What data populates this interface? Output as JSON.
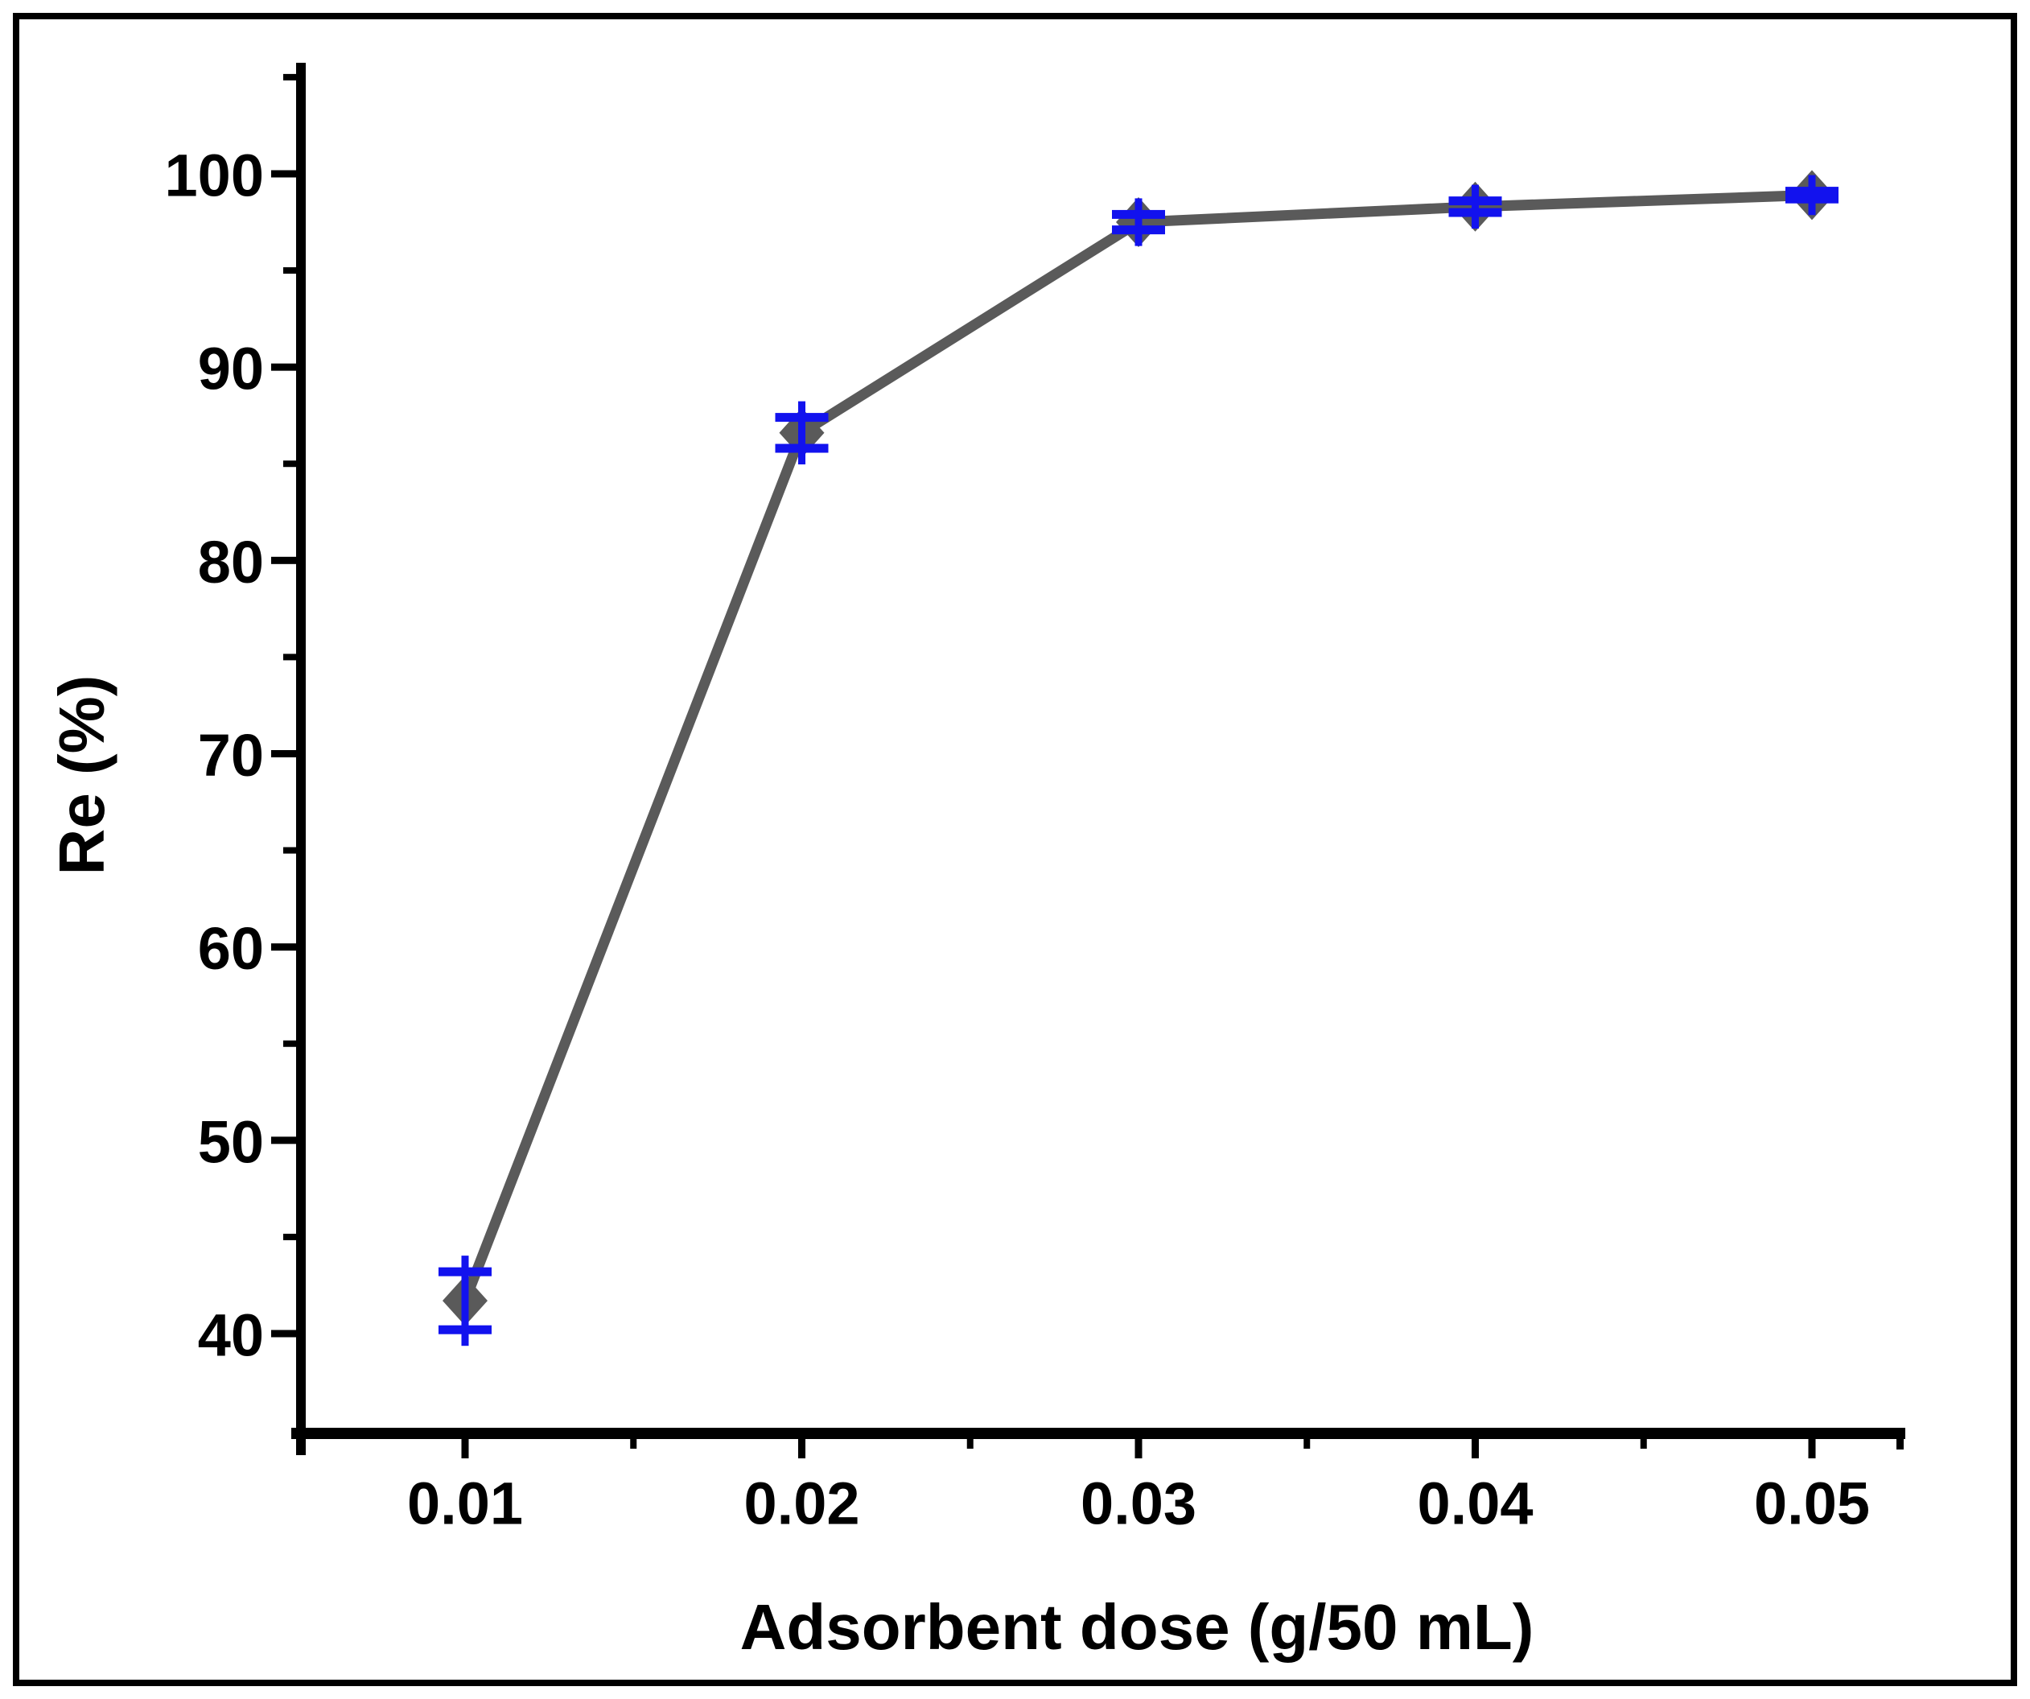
{
  "figure": {
    "background": "#ffffff",
    "border_color": "#000000"
  },
  "chart_data": {
    "type": "line",
    "title": "",
    "xlabel": "Adsorbent dose (g/50 mL)",
    "ylabel": "Re (%)",
    "x": [
      0.01,
      0.02,
      0.03,
      0.04,
      0.05
    ],
    "series": [
      {
        "name": "Re (%)",
        "values": [
          41.7,
          86.6,
          97.5,
          98.3,
          98.9
        ],
        "y_err": [
          1.5,
          0.8,
          0.4,
          0.3,
          0.2
        ]
      }
    ],
    "x_tick_labels": [
      "0.01",
      "0.02",
      "0.03",
      "0.04",
      "0.05"
    ],
    "x_minor_ticks": [
      0.015,
      0.025,
      0.035,
      0.045
    ],
    "y_ticks": [
      40,
      50,
      60,
      70,
      80,
      90,
      100
    ],
    "y_tick_labels": [
      "40",
      "50",
      "60",
      "70",
      "80",
      "90",
      "100"
    ],
    "y_minor_ticks": [
      45,
      55,
      65,
      75,
      85,
      95,
      105
    ],
    "xlim": [
      0.0051,
      0.0528
    ],
    "ylim": [
      34.8,
      105.7
    ],
    "grid": false,
    "legend": "none",
    "marker": "diamond",
    "colors": {
      "line": "#5a5a5a",
      "marker": "#5a5a5a",
      "error_bar": "#1212ee",
      "axis": "#000000",
      "text": "#000000",
      "background": "#ffffff"
    }
  }
}
